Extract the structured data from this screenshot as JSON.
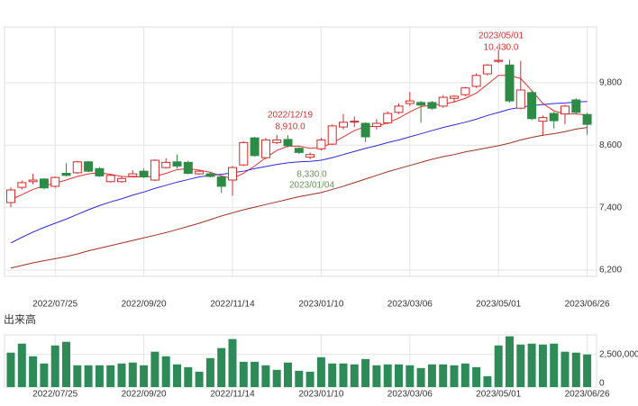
{
  "chart_data": [
    {
      "type": "candlestick",
      "categories": [
        null,
        null,
        null,
        null,
        "2022/07/25",
        null,
        null,
        null,
        null,
        null,
        null,
        null,
        "2022/09/20",
        null,
        null,
        null,
        null,
        null,
        null,
        null,
        "2022/11/14",
        null,
        null,
        null,
        null,
        null,
        null,
        null,
        "2023/01/10",
        null,
        null,
        null,
        null,
        null,
        null,
        null,
        "2023/03/06",
        null,
        null,
        null,
        null,
        null,
        null,
        null,
        "2023/05/01",
        null,
        null,
        null,
        null,
        null,
        null,
        null,
        "2023/06/26"
      ],
      "open": [
        7498,
        7790,
        7900,
        7950,
        7810,
        8060,
        8070,
        8280,
        8150,
        7900,
        7900,
        8000,
        8100,
        7930,
        8170,
        8280,
        8270,
        8050,
        8050,
        7990,
        7930,
        8220,
        8740,
        8360,
        8650,
        8710,
        8540,
        8370,
        8530,
        8620,
        8950,
        9050,
        9020,
        8960,
        9030,
        9230,
        9400,
        9420,
        9420,
        9350,
        9500,
        9570,
        9730,
        9970,
        10210,
        10140,
        9310,
        9610,
        9060,
        9210,
        9200,
        9470,
        9190
      ],
      "high": [
        7790,
        7920,
        8050,
        7970,
        8000,
        8250,
        8300,
        8300,
        8180,
        8040,
        8000,
        8120,
        8150,
        8330,
        8350,
        8420,
        8300,
        8130,
        8080,
        8020,
        8200,
        8680,
        8760,
        8740,
        8800,
        8790,
        8560,
        8460,
        8740,
        9000,
        9200,
        9150,
        9040,
        9100,
        9250,
        9400,
        9620,
        9450,
        9450,
        9560,
        9560,
        9720,
        9980,
        10160,
        10430,
        10240,
        10220,
        9640,
        9170,
        9240,
        9380,
        9500,
        9220
      ],
      "low": [
        7410,
        7750,
        7850,
        7750,
        7780,
        8000,
        8050,
        8080,
        7990,
        7880,
        7880,
        7980,
        7970,
        7910,
        8150,
        8150,
        8040,
        8030,
        7980,
        7680,
        7630,
        8200,
        8380,
        8330,
        8620,
        8560,
        8430,
        8330,
        8500,
        8600,
        8900,
        8950,
        8660,
        8900,
        9000,
        9200,
        9350,
        9030,
        9280,
        9320,
        9420,
        9540,
        9700,
        9940,
        10180,
        9420,
        9290,
        9080,
        8780,
        8920,
        9000,
        9200,
        8800
      ],
      "close": [
        7740,
        7880,
        7930,
        7780,
        7980,
        8020,
        8280,
        8100,
        8010,
        8020,
        7960,
        8050,
        7990,
        8310,
        8270,
        8200,
        8060,
        8100,
        8000,
        7810,
        8170,
        8650,
        8400,
        8700,
        8700,
        8590,
        8460,
        8420,
        8700,
        8970,
        9040,
        9060,
        8760,
        9020,
        9210,
        9350,
        9450,
        9370,
        9310,
        9520,
        9540,
        9700,
        9940,
        10140,
        10230,
        9450,
        9660,
        9110,
        9130,
        9070,
        9350,
        9230,
        9000
      ],
      "up_color": "#d22b2b",
      "down_color": "#2e8b45",
      "lines": [
        {
          "color": "#e03030",
          "values": [
            7550,
            7650,
            7750,
            7820,
            7870,
            7930,
            8000,
            8050,
            8070,
            8040,
            8000,
            7990,
            7990,
            8000,
            8060,
            8130,
            8150,
            8120,
            8080,
            8010,
            7960,
            8060,
            8200,
            8360,
            8500,
            8580,
            8580,
            8540,
            8560,
            8640,
            8760,
            8880,
            8960,
            8960,
            9030,
            9120,
            9240,
            9340,
            9370,
            9390,
            9430,
            9500,
            9600,
            9770,
            9940,
            9940,
            9880,
            9650,
            9400,
            9260,
            9200,
            9200,
            9180
          ]
        },
        {
          "color": "#2a2ad6",
          "values": [
            6720,
            6830,
            6930,
            7020,
            7100,
            7180,
            7270,
            7360,
            7440,
            7510,
            7570,
            7640,
            7700,
            7770,
            7830,
            7890,
            7940,
            7990,
            8020,
            8040,
            8070,
            8100,
            8150,
            8190,
            8230,
            8260,
            8280,
            8290,
            8310,
            8360,
            8420,
            8480,
            8540,
            8590,
            8650,
            8700,
            8760,
            8820,
            8880,
            8940,
            8990,
            9040,
            9100,
            9170,
            9230,
            9290,
            9330,
            9360,
            9380,
            9400,
            9410,
            9430,
            9440
          ]
        },
        {
          "color": "#a03020",
          "values": [
            6240,
            6290,
            6340,
            6380,
            6420,
            6460,
            6510,
            6570,
            6620,
            6670,
            6720,
            6770,
            6820,
            6870,
            6920,
            6980,
            7040,
            7100,
            7170,
            7240,
            7300,
            7360,
            7410,
            7460,
            7510,
            7560,
            7610,
            7650,
            7690,
            7750,
            7810,
            7880,
            7950,
            8020,
            8090,
            8150,
            8210,
            8270,
            8330,
            8380,
            8420,
            8470,
            8510,
            8550,
            8590,
            8640,
            8700,
            8750,
            8790,
            8820,
            8860,
            8910,
            8940
          ]
        }
      ],
      "ylim": [
        6080,
        10870
      ],
      "yticks": [
        {
          "value": 6200,
          "label": "6,200"
        },
        {
          "value": 7400,
          "label": "7,400"
        },
        {
          "value": 8600,
          "label": "8,600"
        },
        {
          "value": 9800,
          "label": "9,800"
        }
      ],
      "grid": true,
      "annotations": [
        {
          "date": "2023/05/01",
          "price": "10,430.0"
        },
        {
          "date": "2022/12/19",
          "price": "8,910.0"
        },
        {
          "price": "8,330.0",
          "date": "2023/01/04"
        }
      ]
    },
    {
      "type": "bar",
      "title": "出来高",
      "color": "#2e8b57",
      "categories": [
        null,
        null,
        null,
        null,
        "2022/07/25",
        null,
        null,
        null,
        null,
        null,
        null,
        null,
        "2022/09/20",
        null,
        null,
        null,
        null,
        null,
        null,
        null,
        "2022/11/14",
        null,
        null,
        null,
        null,
        null,
        null,
        null,
        "2023/01/10",
        null,
        null,
        null,
        null,
        null,
        null,
        null,
        "2023/03/06",
        null,
        null,
        null,
        null,
        null,
        null,
        null,
        "2023/05/01",
        null,
        null,
        null,
        null,
        null,
        null,
        null,
        "2023/06/26"
      ],
      "values": [
        2640000,
        3330000,
        2360000,
        1810000,
        3190000,
        3470000,
        1670000,
        1670000,
        1670000,
        1670000,
        1810000,
        1880000,
        1670000,
        2710000,
        2360000,
        1740000,
        1530000,
        1180000,
        2220000,
        2990000,
        3680000,
        1940000,
        1940000,
        1670000,
        1320000,
        1880000,
        1250000,
        1180000,
        2290000,
        1810000,
        1810000,
        1740000,
        2150000,
        1670000,
        1740000,
        1740000,
        1670000,
        1460000,
        1740000,
        1740000,
        1670000,
        1810000,
        1530000,
        830000,
        3190000,
        3890000,
        3260000,
        3330000,
        3260000,
        3330000,
        2710000,
        2640000,
        2500000
      ],
      "ylim": [
        0,
        4000000
      ],
      "yticks": [
        0,
        {
          "value": 2500000,
          "label": "2,500,000"
        }
      ],
      "grid": true
    }
  ]
}
